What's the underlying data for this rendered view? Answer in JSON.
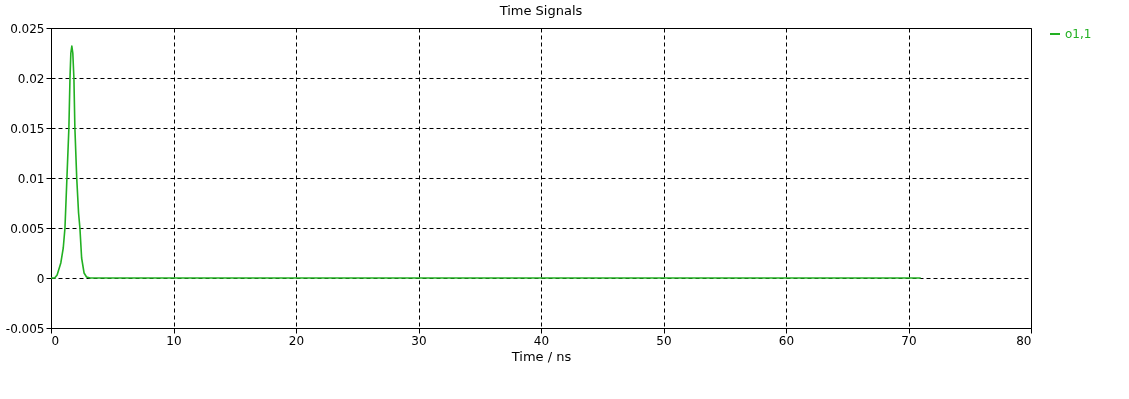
{
  "chart_data": {
    "type": "line",
    "title": "Time Signals",
    "xlabel": "Time / ns",
    "series": [
      {
        "name": "o1,1",
        "color": "#22b022",
        "x": [
          0,
          0.3,
          0.5,
          0.8,
          1.0,
          1.14,
          1.3,
          1.46,
          1.55,
          1.62,
          1.7,
          1.78,
          1.87,
          1.95,
          2.1,
          2.25,
          2.36,
          2.5,
          2.7,
          2.9,
          3.2,
          5,
          10,
          20,
          30,
          40,
          50,
          60,
          71
        ],
        "values": [
          0,
          0,
          0.0003,
          0.0015,
          0.003,
          0.005,
          0.01,
          0.015,
          0.02,
          0.0225,
          0.0232,
          0.0225,
          0.02,
          0.015,
          0.01,
          0.0065,
          0.005,
          0.002,
          0.0005,
          0.0001,
          0,
          0,
          0,
          0,
          0,
          0,
          0,
          0,
          0
        ]
      }
    ],
    "xlim": [
      0,
      80
    ],
    "xticks": [
      0,
      10,
      20,
      30,
      40,
      50,
      60,
      70,
      80
    ],
    "ylim": [
      -0.005,
      0.025
    ],
    "yticks": [
      -0.005,
      0,
      0.005,
      0.01,
      0.015,
      0.02,
      0.025
    ],
    "grid": true,
    "legend": "top right",
    "line_style": "solid",
    "marker": "none"
  }
}
